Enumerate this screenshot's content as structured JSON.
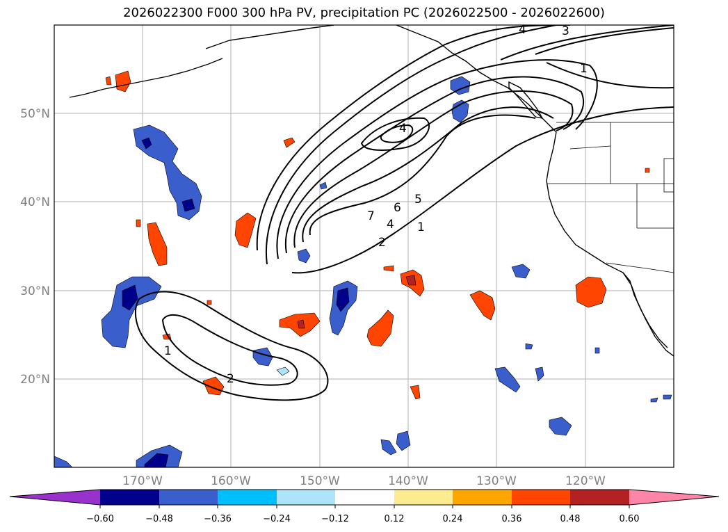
{
  "title": "2026022300 F000 300 hPa PV, precipitation PC (2026022500 - 2026022600)",
  "map": {
    "lat_labels": [
      "50°N",
      "40°N",
      "30°N",
      "20°N"
    ],
    "lon_labels": [
      "170°W",
      "160°W",
      "150°W",
      "140°W",
      "130°W",
      "120°W"
    ],
    "contour_labels": [
      "4",
      "3",
      "1",
      "4",
      "7",
      "6",
      "5",
      "4",
      "2",
      "1",
      "1",
      "2"
    ]
  },
  "colorbar": {
    "ticks": [
      "−0.60",
      "−0.48",
      "−0.36",
      "−0.24",
      "−0.12",
      "0.12",
      "0.24",
      "0.36",
      "0.48",
      "0.60"
    ],
    "colors": {
      "under": "#9932cc",
      "b1": "#00008b",
      "b2": "#3a5fcd",
      "b3": "#00bfff",
      "b4": "#aee4fa",
      "b5": "#ffffff",
      "b6": "#fdeb8f",
      "b7": "#ffa500",
      "b8": "#ff4500",
      "b9": "#b22222",
      "over": "#ff85a8"
    }
  }
}
